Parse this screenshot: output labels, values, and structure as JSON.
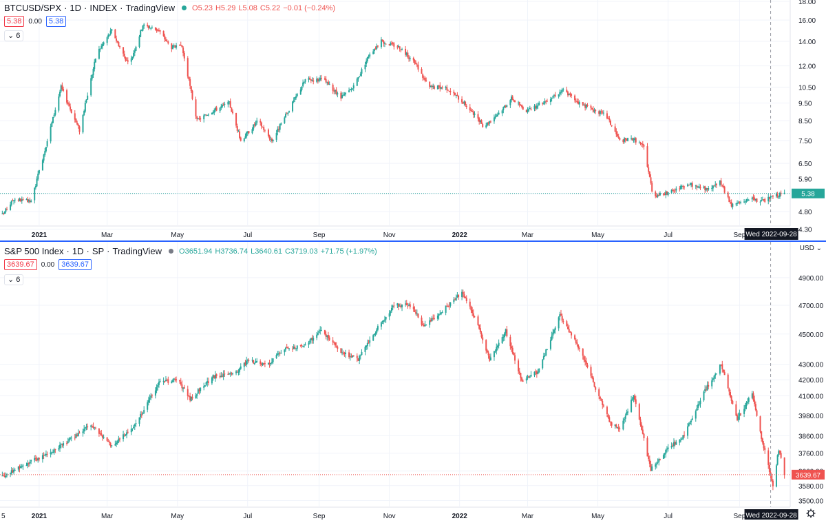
{
  "top": {
    "symbol": "BTCUSD/SPX",
    "interval": "1D",
    "exchange": "INDEX",
    "source": "TradingView",
    "status_color": "#26a69a",
    "ohlc": {
      "open": "O5.23",
      "high": "H5.29",
      "low": "L5.08",
      "close": "C5.22",
      "change": "−0.01 (−0.24%)"
    },
    "bid": "5.38",
    "spread": "0.00",
    "ask": "5.38",
    "indicators_label": "6",
    "price_label": "5.38",
    "crosshair_date": "Wed 2022-09-28"
  },
  "bottom": {
    "symbol": "S&P 500 Index",
    "interval": "1D",
    "exchange": "SP",
    "source": "TradingView",
    "status_color": "#787b86",
    "ohlc": {
      "open": "O3651.94",
      "high": "H3736.74",
      "low": "L3640.61",
      "close": "C3719.03",
      "change": "+71.75 (+1.97%)"
    },
    "bid": "3639.67",
    "spread": "0.00",
    "ask": "3639.67",
    "indicators_label": "6",
    "currency": "USD",
    "price_label": "3639.67",
    "crosshair_date": "Wed 2022-09-28",
    "axis_left_fragment": "5"
  },
  "colors": {
    "up": "#26a69a",
    "down": "#ef5350",
    "accent": "#2962ff",
    "grid": "#f0f3fa",
    "price_line": "#26a69a"
  },
  "chart_data": [
    {
      "type": "candlestick",
      "title": "BTCUSD/SPX",
      "y_scale": "log",
      "ylim": [
        3.9,
        18.0
      ],
      "y_ticks": [
        18.0,
        16.0,
        14.0,
        12.0,
        10.5,
        9.5,
        8.5,
        7.5,
        6.5,
        5.9,
        5.38,
        4.8,
        4.3
      ],
      "x_ticks": [
        "2021",
        "Mar",
        "May",
        "Jul",
        "Sep",
        "Nov",
        "2022",
        "Mar",
        "May",
        "Jul",
        "Sep"
      ],
      "x_tick_dates": [
        "2021-01-01",
        "2021-03-01",
        "2021-05-01",
        "2021-07-01",
        "2021-09-01",
        "2021-11-01",
        "2022-01-01",
        "2022-03-01",
        "2022-05-01",
        "2022-07-01",
        "2022-09-01"
      ],
      "x_range": [
        "2020-11-28",
        "2022-10-12"
      ],
      "last_value": 5.38,
      "approx_path": [
        [
          "2020-11-28",
          4.6
        ],
        [
          "2020-12-10",
          5.2
        ],
        [
          "2020-12-25",
          5.1
        ],
        [
          "2021-01-08",
          7.5
        ],
        [
          "2021-01-20",
          10.5
        ],
        [
          "2021-02-05",
          8.0
        ],
        [
          "2021-02-20",
          13.0
        ],
        [
          "2021-03-05",
          15.0
        ],
        [
          "2021-03-20",
          12.0
        ],
        [
          "2021-04-01",
          15.5
        ],
        [
          "2021-04-15",
          15.0
        ],
        [
          "2021-04-25",
          13.5
        ],
        [
          "2021-05-05",
          13.5
        ],
        [
          "2021-05-18",
          8.5
        ],
        [
          "2021-05-30",
          9.0
        ],
        [
          "2021-06-15",
          9.5
        ],
        [
          "2021-06-25",
          7.5
        ],
        [
          "2021-07-10",
          8.5
        ],
        [
          "2021-07-22",
          7.5
        ],
        [
          "2021-08-05",
          9.0
        ],
        [
          "2021-08-20",
          11.0
        ],
        [
          "2021-09-05",
          11.0
        ],
        [
          "2021-09-20",
          9.8
        ],
        [
          "2021-10-01",
          10.5
        ],
        [
          "2021-10-15",
          13.0
        ],
        [
          "2021-10-25",
          14.0
        ],
        [
          "2021-11-10",
          13.5
        ],
        [
          "2021-11-25",
          12.0
        ],
        [
          "2021-12-05",
          10.5
        ],
        [
          "2021-12-20",
          10.5
        ],
        [
          "2022-01-05",
          9.5
        ],
        [
          "2022-01-22",
          8.2
        ],
        [
          "2022-02-05",
          9.0
        ],
        [
          "2022-02-15",
          9.8
        ],
        [
          "2022-03-01",
          9.0
        ],
        [
          "2022-03-20",
          9.8
        ],
        [
          "2022-04-01",
          10.3
        ],
        [
          "2022-04-15",
          9.5
        ],
        [
          "2022-04-30",
          9.0
        ],
        [
          "2022-05-08",
          8.8
        ],
        [
          "2022-05-20",
          7.5
        ],
        [
          "2022-06-01",
          7.6
        ],
        [
          "2022-06-10",
          7.2
        ],
        [
          "2022-06-18",
          5.3
        ],
        [
          "2022-07-01",
          5.4
        ],
        [
          "2022-07-20",
          5.7
        ],
        [
          "2022-08-05",
          5.5
        ],
        [
          "2022-08-15",
          5.8
        ],
        [
          "2022-08-25",
          5.0
        ],
        [
          "2022-09-10",
          5.2
        ],
        [
          "2022-09-20",
          5.1
        ],
        [
          "2022-10-01",
          5.3
        ],
        [
          "2022-10-10",
          5.38
        ]
      ]
    },
    {
      "type": "candlestick",
      "title": "S&P 500 Index",
      "y_scale": "log",
      "ylim": [
        3480,
        4920
      ],
      "y_ticks": [
        4900,
        4700,
        4500,
        4300,
        4200,
        4100,
        3980,
        3860,
        3760,
        3660,
        3580,
        3500
      ],
      "y_tick_labels": [
        "4900.00",
        "4700.00",
        "4500.00",
        "4300.00",
        "4200.00",
        "4100.00",
        "3980.00",
        "3860.00",
        "3760.00",
        "3660.00",
        "3580.00",
        "3500.00"
      ],
      "x_ticks": [
        "2021",
        "Mar",
        "May",
        "Jul",
        "Sep",
        "Nov",
        "2022",
        "Mar",
        "May",
        "Jul",
        "Sep"
      ],
      "x_tick_dates": [
        "2021-01-01",
        "2021-03-01",
        "2021-05-01",
        "2021-07-01",
        "2021-09-01",
        "2021-11-01",
        "2022-01-01",
        "2022-03-01",
        "2022-05-01",
        "2022-07-01",
        "2022-09-01"
      ],
      "x_range": [
        "2020-11-28",
        "2022-10-12"
      ],
      "last_value": 3639.67,
      "approx_path": [
        [
          "2020-11-28",
          3620
        ],
        [
          "2020-12-15",
          3680
        ],
        [
          "2021-01-15",
          3780
        ],
        [
          "2021-02-15",
          3920
        ],
        [
          "2021-03-05",
          3800
        ],
        [
          "2021-03-25",
          3920
        ],
        [
          "2021-04-15",
          4180
        ],
        [
          "2021-05-01",
          4200
        ],
        [
          "2021-05-12",
          4080
        ],
        [
          "2021-06-01",
          4220
        ],
        [
          "2021-06-20",
          4240
        ],
        [
          "2021-07-01",
          4320
        ],
        [
          "2021-07-20",
          4300
        ],
        [
          "2021-08-01",
          4400
        ],
        [
          "2021-08-20",
          4420
        ],
        [
          "2021-09-02",
          4530
        ],
        [
          "2021-09-20",
          4380
        ],
        [
          "2021-10-05",
          4330
        ],
        [
          "2021-10-20",
          4520
        ],
        [
          "2021-11-05",
          4700
        ],
        [
          "2021-11-20",
          4700
        ],
        [
          "2021-12-01",
          4550
        ],
        [
          "2021-12-15",
          4650
        ],
        [
          "2022-01-03",
          4790
        ],
        [
          "2022-01-15",
          4600
        ],
        [
          "2022-01-27",
          4330
        ],
        [
          "2022-02-10",
          4520
        ],
        [
          "2022-02-24",
          4200
        ],
        [
          "2022-03-10",
          4250
        ],
        [
          "2022-03-29",
          4630
        ],
        [
          "2022-04-15",
          4400
        ],
        [
          "2022-04-30",
          4130
        ],
        [
          "2022-05-12",
          3930
        ],
        [
          "2022-05-20",
          3900
        ],
        [
          "2022-06-01",
          4100
        ],
        [
          "2022-06-16",
          3670
        ],
        [
          "2022-06-30",
          3780
        ],
        [
          "2022-07-15",
          3860
        ],
        [
          "2022-08-01",
          4120
        ],
        [
          "2022-08-16",
          4300
        ],
        [
          "2022-08-30",
          3960
        ],
        [
          "2022-09-12",
          4110
        ],
        [
          "2022-09-20",
          3850
        ],
        [
          "2022-09-30",
          3580
        ],
        [
          "2022-10-05",
          3780
        ],
        [
          "2022-10-10",
          3639.67
        ]
      ]
    }
  ]
}
